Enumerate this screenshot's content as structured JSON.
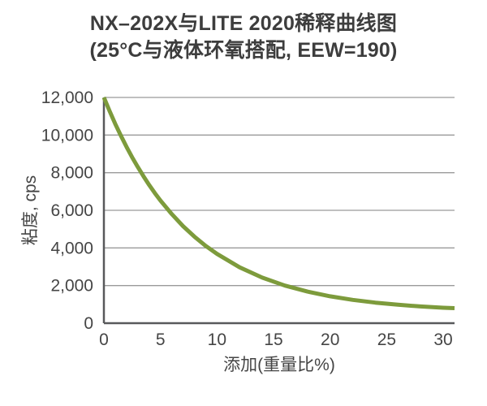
{
  "chart_data": {
    "type": "line",
    "title": "NX–202X与LITE 2020稀释曲线图",
    "subtitle": "(25°C与液体环氧搭配, EEW=190)",
    "xlabel": "添加(重量比%)",
    "ylabel": "粘度, cps",
    "xlim": [
      0,
      31
    ],
    "ylim": [
      0,
      12000
    ],
    "xticks": [
      0,
      5,
      10,
      15,
      20,
      25,
      30
    ],
    "xtick_labels": [
      "0",
      "5",
      "10",
      "15",
      "20",
      "25",
      "30"
    ],
    "yticks": [
      0,
      2000,
      4000,
      6000,
      8000,
      10000,
      12000
    ],
    "ytick_labels": [
      "0",
      "2,000",
      "4,000",
      "6,000",
      "8,000",
      "10,000",
      "12,000"
    ],
    "grid": "horizontal",
    "legend": "none",
    "series": [
      {
        "name": "NX–202X与LITE 2020",
        "color": "#7D9B3C",
        "x": [
          0,
          0.5,
          1,
          1.5,
          2,
          2.5,
          3,
          3.5,
          4,
          4.5,
          5,
          6,
          7,
          8,
          9,
          10,
          12,
          14,
          16,
          18,
          20,
          22,
          24,
          26,
          28,
          30,
          31
        ],
        "y": [
          12000,
          11280,
          10600,
          9970,
          9370,
          8820,
          8300,
          7810,
          7350,
          6920,
          6520,
          5800,
          5160,
          4600,
          4110,
          3680,
          2970,
          2420,
          2000,
          1680,
          1430,
          1240,
          1090,
          980,
          890,
          820,
          800
        ]
      }
    ]
  },
  "colors": {
    "background": "#ffffff",
    "title_text": "#3d3d3d",
    "tick_text": "#454545",
    "gridline": "#9a9a9a",
    "axis_line": "#58595b",
    "curve": "#7D9B3C"
  }
}
